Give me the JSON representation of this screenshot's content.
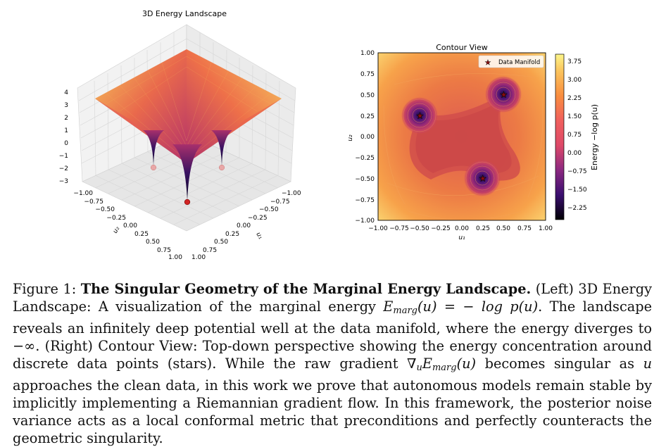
{
  "left_panel": {
    "title": "3D Energy Landscape",
    "z_ticks": [
      "4",
      "3",
      "2",
      "1",
      "0",
      "−1",
      "−2",
      "−3"
    ],
    "u1_ticks": [
      "−1.00",
      "−0.75",
      "−0.50",
      "−0.25",
      "0.00",
      "0.25",
      "0.50",
      "0.75",
      "1.00"
    ],
    "u2_ticks": [
      "−1.00",
      "−0.75",
      "−0.50",
      "−0.25",
      "0.00",
      "0.25",
      "0.50",
      "0.75",
      "1.00"
    ],
    "u1_label": "u₁",
    "u2_label": "u₂"
  },
  "right_panel": {
    "title": "Contour View",
    "legend_label": "Data Manifold",
    "x_ticks": [
      "−1.00",
      "−0.75",
      "−0.50",
      "−0.25",
      "0.00",
      "0.25",
      "0.50",
      "0.75",
      "1.00"
    ],
    "y_ticks": [
      "1.00",
      "0.75",
      "0.50",
      "0.25",
      "0.00",
      "−0.25",
      "−0.50",
      "−0.75",
      "−1.00"
    ],
    "xlabel": "u₁",
    "ylabel": "u₂",
    "colorbar_ticks": [
      "3.75",
      "3.00",
      "2.25",
      "1.50",
      "0.75",
      "0.00",
      "−0.75",
      "−1.50",
      "−2.25"
    ],
    "colorbar_label": "Energy  −log p(u)",
    "colors": {
      "low": "#0d0829",
      "mid": "#d24f4f",
      "high": "#f6e97a"
    }
  },
  "chart_data": {
    "type": "scatter",
    "title": "Contour View",
    "xlabel": "u₁",
    "ylabel": "u₂",
    "xlim": [
      -1,
      1
    ],
    "ylim": [
      -1,
      1
    ],
    "series": [
      {
        "name": "Data Manifold",
        "x": [
          -0.5,
          0.5,
          0.25
        ],
        "y": [
          0.25,
          0.5,
          -0.5
        ]
      }
    ],
    "colorbar_range": [
      -2.7,
      4.0
    ],
    "legend_placement": "top-right"
  },
  "caption": {
    "fig_label": "Figure 1:",
    "bold_title": "The Singular Geometry of the Marginal Energy Landscape.",
    "part1": "(Left) 3D Energy Landscape: A visualization of the marginal energy",
    "part2": ". The landscape reveals an infinitely deep potential well at the data manifold, where the energy diverges to −∞. (Right) Contour View: Top-down perspective showing the energy concentration around discrete data points (stars). While the raw gradient",
    "part3": "becomes singular as",
    "part4": "approaches the clean data, in this work we prove that autonomous models remain stable by implicitly implementing a Riemannian gradient flow. In this framework, the posterior noise variance acts as a local conformal metric that preconditions and perfectly counteracts the geometric singularity."
  }
}
